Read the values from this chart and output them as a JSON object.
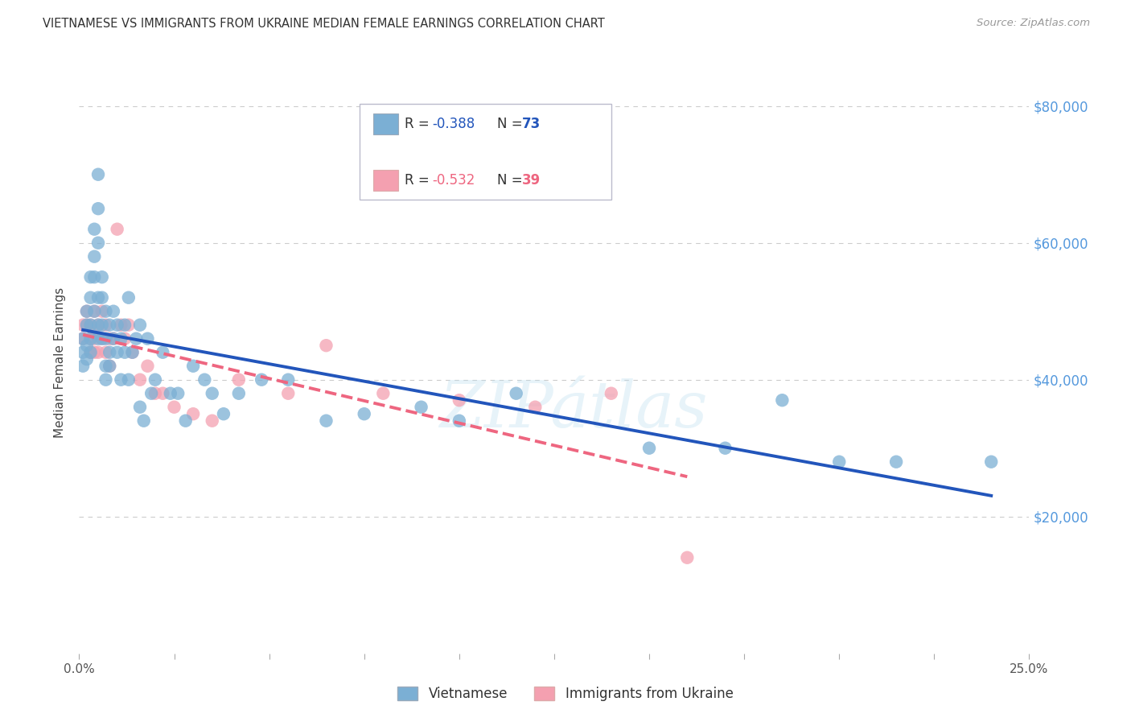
{
  "title": "VIETNAMESE VS IMMIGRANTS FROM UKRAINE MEDIAN FEMALE EARNINGS CORRELATION CHART",
  "source": "Source: ZipAtlas.com",
  "ylabel": "Median Female Earnings",
  "xlim": [
    0.0,
    0.25
  ],
  "ylim": [
    0,
    85000
  ],
  "yticks": [
    20000,
    40000,
    60000,
    80000
  ],
  "ytick_labels": [
    "$20,000",
    "$40,000",
    "$60,000",
    "$80,000"
  ],
  "xtick_positions": [
    0.0,
    0.025,
    0.05,
    0.075,
    0.1,
    0.125,
    0.15,
    0.175,
    0.2,
    0.225,
    0.25
  ],
  "xtick_labels_show": {
    "0.0": "0.0%",
    "0.25": "25.0%"
  },
  "watermark": "ZIPátlas",
  "legend_r1": "-0.388",
  "legend_n1": "73",
  "legend_r2": "-0.532",
  "legend_n2": "39",
  "legend_label1": "Vietnamese",
  "legend_label2": "Immigrants from Ukraine",
  "blue_scatter_color": "#7BAFD4",
  "pink_scatter_color": "#F4A0B0",
  "line_blue": "#2255BB",
  "line_pink": "#EE6680",
  "r_color_blue": "#2255BB",
  "r_color_pink": "#EE6680",
  "right_yaxis_color": "#5599DD",
  "scatter_blue_x": [
    0.001,
    0.001,
    0.001,
    0.002,
    0.002,
    0.002,
    0.002,
    0.003,
    0.003,
    0.003,
    0.003,
    0.003,
    0.004,
    0.004,
    0.004,
    0.004,
    0.005,
    0.005,
    0.005,
    0.005,
    0.005,
    0.005,
    0.006,
    0.006,
    0.006,
    0.006,
    0.007,
    0.007,
    0.007,
    0.007,
    0.008,
    0.008,
    0.008,
    0.009,
    0.009,
    0.01,
    0.01,
    0.011,
    0.011,
    0.012,
    0.012,
    0.013,
    0.013,
    0.014,
    0.015,
    0.016,
    0.016,
    0.017,
    0.018,
    0.019,
    0.02,
    0.022,
    0.024,
    0.026,
    0.028,
    0.03,
    0.033,
    0.035,
    0.038,
    0.042,
    0.048,
    0.055,
    0.065,
    0.075,
    0.09,
    0.1,
    0.115,
    0.15,
    0.17,
    0.185,
    0.2,
    0.215,
    0.24
  ],
  "scatter_blue_y": [
    44000,
    46000,
    42000,
    50000,
    48000,
    45000,
    43000,
    55000,
    52000,
    48000,
    46000,
    44000,
    62000,
    58000,
    55000,
    50000,
    65000,
    70000,
    60000,
    52000,
    48000,
    46000,
    55000,
    52000,
    48000,
    46000,
    50000,
    46000,
    42000,
    40000,
    48000,
    44000,
    42000,
    50000,
    46000,
    48000,
    44000,
    46000,
    40000,
    48000,
    44000,
    52000,
    40000,
    44000,
    46000,
    48000,
    36000,
    34000,
    46000,
    38000,
    40000,
    44000,
    38000,
    38000,
    34000,
    42000,
    40000,
    38000,
    35000,
    38000,
    40000,
    40000,
    34000,
    35000,
    36000,
    34000,
    38000,
    30000,
    30000,
    37000,
    28000,
    28000,
    28000
  ],
  "scatter_pink_x": [
    0.001,
    0.001,
    0.002,
    0.002,
    0.003,
    0.003,
    0.003,
    0.004,
    0.004,
    0.004,
    0.005,
    0.005,
    0.006,
    0.006,
    0.007,
    0.007,
    0.008,
    0.008,
    0.009,
    0.01,
    0.011,
    0.012,
    0.013,
    0.014,
    0.016,
    0.018,
    0.02,
    0.022,
    0.025,
    0.03,
    0.035,
    0.042,
    0.055,
    0.065,
    0.08,
    0.1,
    0.12,
    0.14,
    0.16
  ],
  "scatter_pink_y": [
    48000,
    46000,
    50000,
    48000,
    48000,
    46000,
    44000,
    50000,
    46000,
    44000,
    48000,
    44000,
    50000,
    46000,
    48000,
    44000,
    46000,
    42000,
    46000,
    62000,
    48000,
    46000,
    48000,
    44000,
    40000,
    42000,
    38000,
    38000,
    36000,
    35000,
    34000,
    40000,
    38000,
    45000,
    38000,
    37000,
    36000,
    38000,
    14000
  ]
}
